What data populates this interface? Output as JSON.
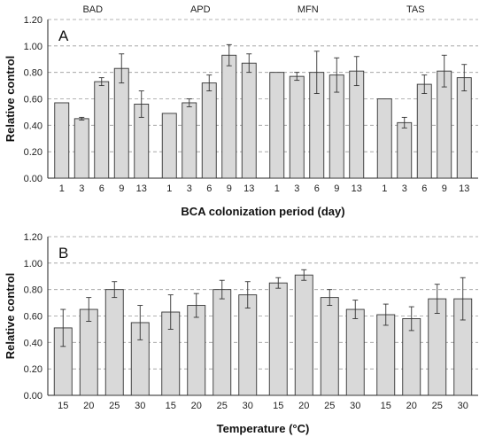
{
  "chart_data": [
    {
      "type": "bar",
      "panel_label": "A",
      "ylabel": "Relative control",
      "xlabel": "BCA colonization period (day)",
      "ylim": [
        0,
        1.2
      ],
      "ytick_labels": [
        "0.00",
        "0.20",
        "0.40",
        "0.60",
        "0.80",
        "1.00",
        "1.20"
      ],
      "grid": "dashed horizontal",
      "groups": [
        {
          "name": "BAD",
          "categories": [
            "1",
            "3",
            "6",
            "9",
            "13"
          ],
          "values": [
            0.57,
            0.45,
            0.73,
            0.83,
            0.56
          ],
          "errors": [
            0,
            0.01,
            0.03,
            0.11,
            0.1
          ]
        },
        {
          "name": "APD",
          "categories": [
            "1",
            "3",
            "6",
            "9",
            "13"
          ],
          "values": [
            0.49,
            0.57,
            0.72,
            0.93,
            0.87
          ],
          "errors": [
            0,
            0.03,
            0.06,
            0.08,
            0.07
          ]
        },
        {
          "name": "MFN",
          "categories": [
            "1",
            "3",
            "6",
            "9",
            "13"
          ],
          "values": [
            0.8,
            0.77,
            0.8,
            0.78,
            0.81
          ],
          "errors": [
            0,
            0.03,
            0.16,
            0.13,
            0.11
          ]
        },
        {
          "name": "TAS",
          "categories": [
            "1",
            "3",
            "6",
            "9",
            "13"
          ],
          "values": [
            0.6,
            0.42,
            0.71,
            0.81,
            0.76
          ],
          "errors": [
            0,
            0.04,
            0.07,
            0.12,
            0.1
          ]
        }
      ]
    },
    {
      "type": "bar",
      "panel_label": "B",
      "ylabel": "Relative control",
      "xlabel": "Temperature (°C)",
      "ylim": [
        0,
        1.2
      ],
      "ytick_labels": [
        "0.00",
        "0.20",
        "0.40",
        "0.60",
        "0.80",
        "1.00",
        "1.20"
      ],
      "grid": "dashed horizontal",
      "groups": [
        {
          "name": "BAD",
          "categories": [
            "15",
            "20",
            "25",
            "30"
          ],
          "values": [
            0.51,
            0.65,
            0.8,
            0.55
          ],
          "errors": [
            0.14,
            0.09,
            0.06,
            0.13
          ]
        },
        {
          "name": "APD",
          "categories": [
            "15",
            "20",
            "25",
            "30"
          ],
          "values": [
            0.63,
            0.68,
            0.8,
            0.76
          ],
          "errors": [
            0.13,
            0.09,
            0.07,
            0.1
          ]
        },
        {
          "name": "MFN",
          "categories": [
            "15",
            "20",
            "25",
            "30"
          ],
          "values": [
            0.85,
            0.91,
            0.74,
            0.65
          ],
          "errors": [
            0.04,
            0.04,
            0.06,
            0.07
          ]
        },
        {
          "name": "TAS",
          "categories": [
            "15",
            "20",
            "25",
            "30"
          ],
          "values": [
            0.61,
            0.58,
            0.73,
            0.73
          ],
          "errors": [
            0.08,
            0.09,
            0.11,
            0.16
          ]
        }
      ]
    }
  ]
}
